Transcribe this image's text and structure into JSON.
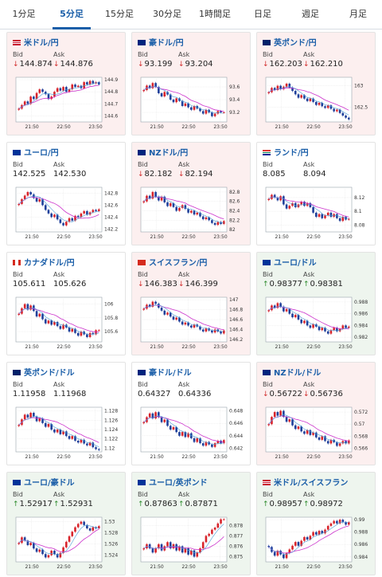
{
  "tabs": [
    {
      "label": "1分足",
      "active": false
    },
    {
      "label": "5分足",
      "active": true
    },
    {
      "label": "15分足",
      "active": false
    },
    {
      "label": "30分足",
      "active": false
    },
    {
      "label": "1時間足",
      "active": false
    },
    {
      "label": "日足",
      "active": false
    },
    {
      "label": "週足",
      "active": false
    },
    {
      "label": "月足",
      "active": false
    }
  ],
  "bid_label": "Bid",
  "ask_label": "Ask",
  "colors": {
    "down": "#d12b2b",
    "up": "#2b8a2b",
    "candle_up": "#d8232a",
    "candle_down": "#1e3f9a",
    "ma": "#cc33cc",
    "ma2": "#4a9cd6",
    "title": "#1a5ea8"
  },
  "cards": [
    {
      "title": "米ドル/円",
      "dir": "down",
      "bid": "144.874",
      "ask": "144.876",
      "flag": "us-flag",
      "chart_data": {
        "type": "candlestick",
        "x_ticks": [
          "21:50",
          "22:50",
          "23:50"
        ],
        "y_ticks": [
          "144.9",
          "144.8",
          "144.7",
          "144.6"
        ],
        "ylim": [
          144.55,
          144.92
        ],
        "closes": [
          144.66,
          144.69,
          144.72,
          144.7,
          144.76,
          144.74,
          144.79,
          144.82,
          144.8,
          144.78,
          144.74,
          144.76,
          144.8,
          144.83,
          144.81,
          144.84,
          144.8,
          144.82,
          144.86,
          144.84,
          144.85,
          144.83,
          144.88,
          144.86,
          144.89,
          144.87,
          144.88,
          144.86
        ]
      }
    },
    {
      "title": "豪ドル/円",
      "dir": "down",
      "bid": "93.199",
      "ask": "93.204",
      "flag": "au-flag",
      "chart_data": {
        "type": "candlestick",
        "x_ticks": [
          "21:50",
          "22:50",
          "23:50"
        ],
        "y_ticks": [
          "93.6",
          "93.4",
          "93.2"
        ],
        "ylim": [
          93.05,
          93.75
        ],
        "closes": [
          93.55,
          93.62,
          93.58,
          93.66,
          93.6,
          93.5,
          93.45,
          93.52,
          93.48,
          93.4,
          93.36,
          93.42,
          93.38,
          93.3,
          93.34,
          93.28,
          93.24,
          93.3,
          93.26,
          93.22,
          93.18,
          93.24,
          93.2,
          93.14,
          93.18,
          93.22,
          93.2,
          93.2
        ]
      }
    },
    {
      "title": "英ポンド/円",
      "dir": "down",
      "bid": "162.203",
      "ask": "162.210",
      "flag": "gb-flag",
      "chart_data": {
        "type": "candlestick",
        "x_ticks": [
          "21:50",
          "22:50",
          "23:50"
        ],
        "y_ticks": [
          "163",
          "162.5"
        ],
        "ylim": [
          162.15,
          163.2
        ],
        "closes": [
          162.85,
          162.95,
          162.9,
          163.0,
          162.92,
          162.98,
          163.05,
          162.96,
          162.88,
          162.8,
          162.72,
          162.78,
          162.7,
          162.64,
          162.7,
          162.62,
          162.55,
          162.6,
          162.52,
          162.48,
          162.54,
          162.46,
          162.4,
          162.44,
          162.36,
          162.3,
          162.25,
          162.21
        ]
      }
    },
    {
      "title": "ユーロ/円",
      "dir": "flat",
      "bid": "142.525",
      "ask": "142.530",
      "flag": "eu-flag",
      "chart_data": {
        "type": "candlestick",
        "x_ticks": [
          "21:50",
          "22:50",
          "23:50"
        ],
        "y_ticks": [
          "142.8",
          "142.6",
          "142.4",
          "142.2"
        ],
        "ylim": [
          142.15,
          142.9
        ],
        "closes": [
          142.62,
          142.7,
          142.76,
          142.82,
          142.78,
          142.72,
          142.66,
          142.7,
          142.6,
          142.52,
          142.46,
          142.4,
          142.44,
          142.36,
          142.3,
          142.26,
          142.32,
          142.38,
          142.34,
          142.42,
          142.4,
          142.46,
          142.5,
          142.44,
          142.48,
          142.52,
          142.5,
          142.53
        ]
      }
    },
    {
      "title": "NZドル/円",
      "dir": "down",
      "bid": "82.182",
      "ask": "82.194",
      "flag": "nz-flag",
      "chart_data": {
        "type": "candlestick",
        "x_ticks": [
          "21:50",
          "22:50",
          "23:50"
        ],
        "y_ticks": [
          "82.8",
          "82.6",
          "82.4",
          "82.2",
          "82"
        ],
        "ylim": [
          81.95,
          82.9
        ],
        "closes": [
          82.6,
          82.72,
          82.66,
          82.8,
          82.7,
          82.62,
          82.7,
          82.58,
          82.5,
          82.56,
          82.48,
          82.4,
          82.46,
          82.52,
          82.44,
          82.36,
          82.4,
          82.32,
          82.36,
          82.28,
          82.22,
          82.26,
          82.2,
          82.14,
          82.1,
          82.16,
          82.12,
          82.18
        ]
      }
    },
    {
      "title": "ランド/円",
      "dir": "flat",
      "bid": "8.085",
      "ask": "8.094",
      "flag": "za-flag",
      "chart_data": {
        "type": "candlestick",
        "x_ticks": [
          "21:50",
          "22:50",
          "23:50"
        ],
        "y_ticks": [
          "8.12",
          "8.1",
          "8.08"
        ],
        "ylim": [
          8.07,
          8.135
        ],
        "closes": [
          8.118,
          8.124,
          8.12,
          8.116,
          8.122,
          8.11,
          8.104,
          8.108,
          8.112,
          8.106,
          8.11,
          8.114,
          8.108,
          8.112,
          8.106,
          8.098,
          8.092,
          8.096,
          8.09,
          8.094,
          8.098,
          8.092,
          8.096,
          8.09,
          8.086,
          8.092,
          8.088,
          8.089
        ]
      }
    },
    {
      "title": "カナダドル/円",
      "dir": "flat",
      "bid": "105.611",
      "ask": "105.626",
      "flag": "ca-flag",
      "chart_data": {
        "type": "candlestick",
        "x_ticks": [
          "21:50",
          "22:50",
          "23:50"
        ],
        "y_ticks": [
          "106",
          "105.8",
          "105.6"
        ],
        "ylim": [
          105.45,
          106.1
        ],
        "closes": [
          105.86,
          105.94,
          106.0,
          105.92,
          105.98,
          105.9,
          105.82,
          105.86,
          105.78,
          105.72,
          105.76,
          105.7,
          105.74,
          105.68,
          105.64,
          105.7,
          105.66,
          105.6,
          105.64,
          105.58,
          105.54,
          105.6,
          105.56,
          105.52,
          105.58,
          105.56,
          105.62,
          105.62
        ]
      }
    },
    {
      "title": "スイスフラン/円",
      "dir": "down",
      "bid": "146.383",
      "ask": "146.399",
      "flag": "ch-flag",
      "chart_data": {
        "type": "candlestick",
        "x_ticks": [
          "21:50",
          "22:50",
          "23:50"
        ],
        "y_ticks": [
          "147",
          "146.8",
          "146.6",
          "146.4",
          "146.2"
        ],
        "ylim": [
          146.15,
          147.05
        ],
        "closes": [
          146.82,
          146.9,
          146.86,
          146.96,
          146.92,
          146.84,
          146.78,
          146.7,
          146.74,
          146.66,
          146.6,
          146.64,
          146.56,
          146.5,
          146.54,
          146.48,
          146.44,
          146.5,
          146.46,
          146.4,
          146.36,
          146.42,
          146.38,
          146.34,
          146.4,
          146.36,
          146.32,
          146.38
        ]
      }
    },
    {
      "title": "ユーロ/ドル",
      "dir": "up",
      "bid": "0.98377",
      "ask": "0.98381",
      "flag": "eu-flag",
      "chart_data": {
        "type": "candlestick",
        "x_ticks": [
          "21:50",
          "22:50",
          "23:50"
        ],
        "y_ticks": [
          "0.988",
          "0.986",
          "0.984",
          "0.982"
        ],
        "ylim": [
          0.9812,
          0.9888
        ],
        "closes": [
          0.9866,
          0.9874,
          0.987,
          0.9878,
          0.9872,
          0.9864,
          0.9868,
          0.986,
          0.9854,
          0.9858,
          0.985,
          0.9844,
          0.9848,
          0.984,
          0.9836,
          0.9842,
          0.9838,
          0.9832,
          0.9836,
          0.983,
          0.9826,
          0.9832,
          0.9836,
          0.983,
          0.9834,
          0.984,
          0.9836,
          0.9838
        ]
      }
    },
    {
      "title": "英ポンド/ドル",
      "dir": "flat",
      "bid": "1.11958",
      "ask": "1.11968",
      "flag": "gb-flag",
      "chart_data": {
        "type": "candlestick",
        "x_ticks": [
          "21:50",
          "22:50",
          "23:50"
        ],
        "y_ticks": [
          "1.128",
          "1.126",
          "1.124",
          "1.122",
          "1.12"
        ],
        "ylim": [
          1.1192,
          1.1288
        ],
        "closes": [
          1.125,
          1.1262,
          1.1272,
          1.1266,
          1.1276,
          1.1268,
          1.1258,
          1.1264,
          1.1254,
          1.1246,
          1.1252,
          1.124,
          1.1234,
          1.124,
          1.123,
          1.1236,
          1.1226,
          1.122,
          1.1226,
          1.1216,
          1.1212,
          1.1218,
          1.121,
          1.1206,
          1.1212,
          1.1202,
          1.1198,
          1.1196
        ]
      }
    },
    {
      "title": "豪ドル/ドル",
      "dir": "flat",
      "bid": "0.64327",
      "ask": "0.64336",
      "flag": "au-flag",
      "chart_data": {
        "type": "candlestick",
        "x_ticks": [
          "21:50",
          "22:50",
          "23:50"
        ],
        "y_ticks": [
          "0.648",
          "0.646",
          "0.644",
          "0.642"
        ],
        "ylim": [
          0.6414,
          0.6486
        ],
        "closes": [
          0.6462,
          0.647,
          0.6476,
          0.6468,
          0.6478,
          0.647,
          0.6462,
          0.6466,
          0.6456,
          0.645,
          0.6454,
          0.6446,
          0.644,
          0.6446,
          0.6438,
          0.6444,
          0.6436,
          0.643,
          0.6436,
          0.6428,
          0.6424,
          0.643,
          0.6426,
          0.6422,
          0.6428,
          0.6432,
          0.6428,
          0.6433
        ]
      }
    },
    {
      "title": "NZドル/ドル",
      "dir": "down",
      "bid": "0.56722",
      "ask": "0.56736",
      "flag": "nz-flag",
      "chart_data": {
        "type": "candlestick",
        "x_ticks": [
          "21:50",
          "22:50",
          "23:50"
        ],
        "y_ticks": [
          "0.572",
          "0.57",
          "0.568",
          "0.566"
        ],
        "ylim": [
          0.5654,
          0.5728
        ],
        "closes": [
          0.57,
          0.5712,
          0.572,
          0.5714,
          0.5722,
          0.5712,
          0.5704,
          0.5708,
          0.5698,
          0.5692,
          0.5696,
          0.5688,
          0.5684,
          0.569,
          0.5682,
          0.5686,
          0.5678,
          0.5674,
          0.568,
          0.5672,
          0.5668,
          0.5674,
          0.567,
          0.5664,
          0.5668,
          0.5672,
          0.5668,
          0.5673
        ]
      }
    },
    {
      "title": "ユーロ/豪ドル",
      "dir": "up",
      "bid": "1.52917",
      "ask": "1.52931",
      "flag": "eu-flag",
      "chart_data": {
        "type": "candlestick",
        "x_ticks": [
          "21:50",
          "22:50",
          "23:50"
        ],
        "y_ticks": [
          "1.53",
          "1.528",
          "1.526",
          "1.524"
        ],
        "ylim": [
          1.5228,
          1.5308
        ],
        "closes": [
          1.5262,
          1.5272,
          1.5266,
          1.5258,
          1.5262,
          1.5252,
          1.5246,
          1.525,
          1.5242,
          1.5236,
          1.524,
          1.5248,
          1.5242,
          1.5236,
          1.5244,
          1.5254,
          1.5264,
          1.5274,
          1.5282,
          1.529,
          1.5296,
          1.53,
          1.5294,
          1.5288,
          1.5284,
          1.529,
          1.5288,
          1.5292
        ]
      }
    },
    {
      "title": "ユーロ/英ポンド",
      "dir": "up",
      "bid": "0.87863",
      "ask": "0.87871",
      "flag": "eu-flag",
      "chart_data": {
        "type": "candlestick",
        "x_ticks": [
          "21:50",
          "22:50",
          "23:50"
        ],
        "y_ticks": [
          "0.878",
          "0.877",
          "0.876",
          "0.875"
        ],
        "ylim": [
          0.8745,
          0.8788
        ],
        "closes": [
          0.8758,
          0.8762,
          0.8758,
          0.8754,
          0.8758,
          0.8762,
          0.8756,
          0.876,
          0.8764,
          0.8758,
          0.8762,
          0.8756,
          0.876,
          0.8754,
          0.8758,
          0.8752,
          0.8756,
          0.875,
          0.8754,
          0.8758,
          0.8764,
          0.877,
          0.8772,
          0.8776,
          0.8778,
          0.8782,
          0.8786,
          0.8786
        ]
      }
    },
    {
      "title": "米ドル/スイスフラン",
      "dir": "up",
      "bid": "0.98957",
      "ask": "0.98972",
      "flag": "us-flag",
      "chart_data": {
        "type": "candlestick",
        "x_ticks": [
          "21:50",
          "22:50",
          "23:50"
        ],
        "y_ticks": [
          "0.99",
          "0.988",
          "0.986",
          "0.984"
        ],
        "ylim": [
          0.9832,
          0.9904
        ],
        "closes": [
          0.9856,
          0.9848,
          0.9842,
          0.985,
          0.9844,
          0.9838,
          0.9846,
          0.9852,
          0.9858,
          0.9864,
          0.9858,
          0.9866,
          0.9872,
          0.9868,
          0.9874,
          0.988,
          0.9876,
          0.9882,
          0.9878,
          0.9884,
          0.989,
          0.9894,
          0.9898,
          0.9894,
          0.99,
          0.9896,
          0.9892,
          0.9896
        ]
      }
    }
  ]
}
